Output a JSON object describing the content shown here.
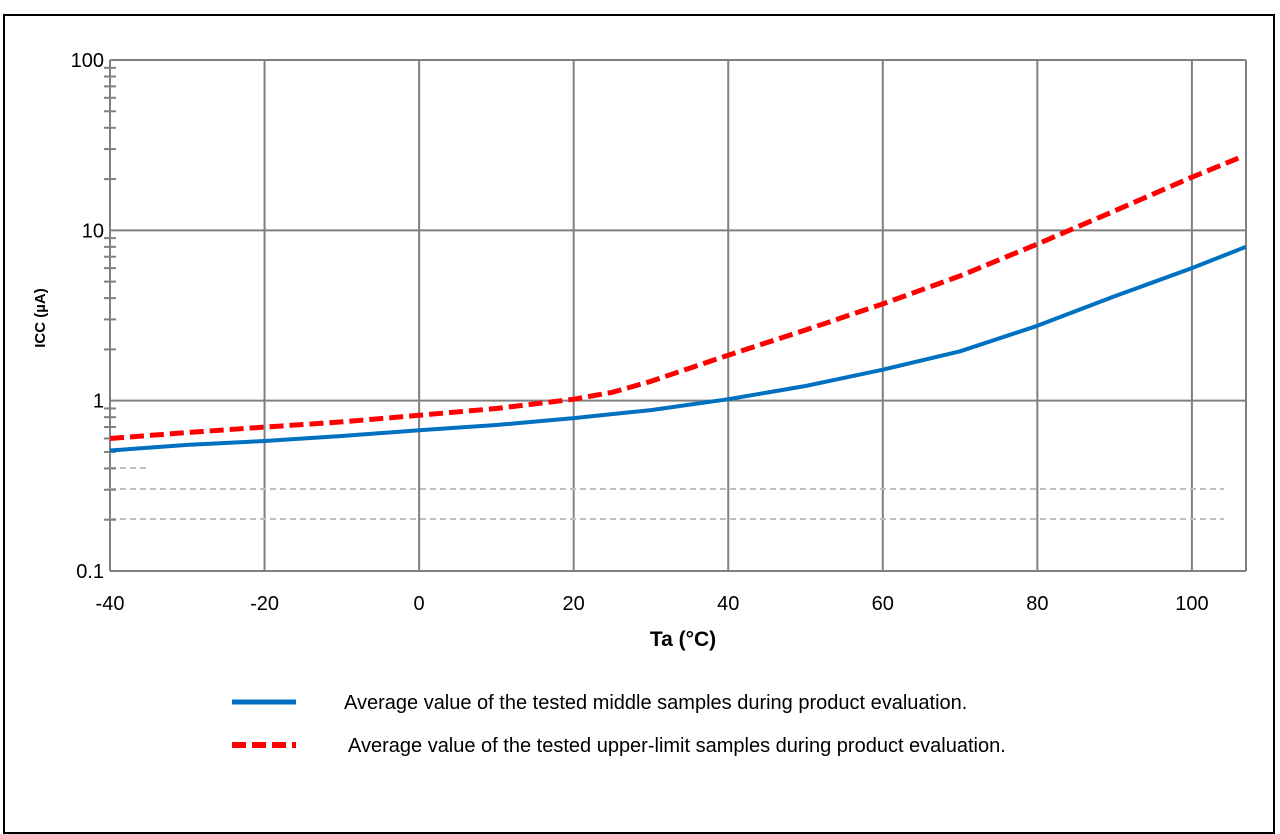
{
  "chart_data": {
    "type": "line",
    "title": "",
    "xlabel": "Ta (°C)",
    "ylabel": "ICC (µA)",
    "xlim": [
      -40,
      107
    ],
    "ylim": [
      0.1,
      100
    ],
    "yscale": "log",
    "grid": true,
    "x_ticks": [
      "-40",
      "-20",
      "0",
      "20",
      "40",
      "60",
      "80",
      "100"
    ],
    "y_ticks": [
      "0.1",
      "1",
      "10",
      "100"
    ],
    "legend_position": "bottom",
    "series": [
      {
        "name": "Average value of the tested middle samples during product evaluation.",
        "color": "#0070c0",
        "style": "solid",
        "x": [
          -40,
          -30,
          -20,
          -10,
          0,
          10,
          20,
          30,
          40,
          50,
          60,
          70,
          80,
          90,
          100,
          107
        ],
        "y": [
          0.51,
          0.55,
          0.58,
          0.62,
          0.67,
          0.72,
          0.79,
          0.88,
          1.02,
          1.22,
          1.52,
          1.95,
          2.75,
          4.1,
          6.0,
          8.0
        ]
      },
      {
        "name": "Average value of the tested upper-limit samples during product evaluation.",
        "color": "#ff0000",
        "style": "dashed",
        "x": [
          -40,
          -30,
          -20,
          -10,
          0,
          10,
          20,
          25,
          30,
          35,
          40,
          50,
          60,
          70,
          80,
          90,
          100,
          106
        ],
        "y": [
          0.6,
          0.65,
          0.7,
          0.75,
          0.82,
          0.9,
          1.02,
          1.12,
          1.3,
          1.55,
          1.85,
          2.6,
          3.7,
          5.4,
          8.3,
          13.0,
          20.5,
          26.5
        ]
      }
    ]
  }
}
